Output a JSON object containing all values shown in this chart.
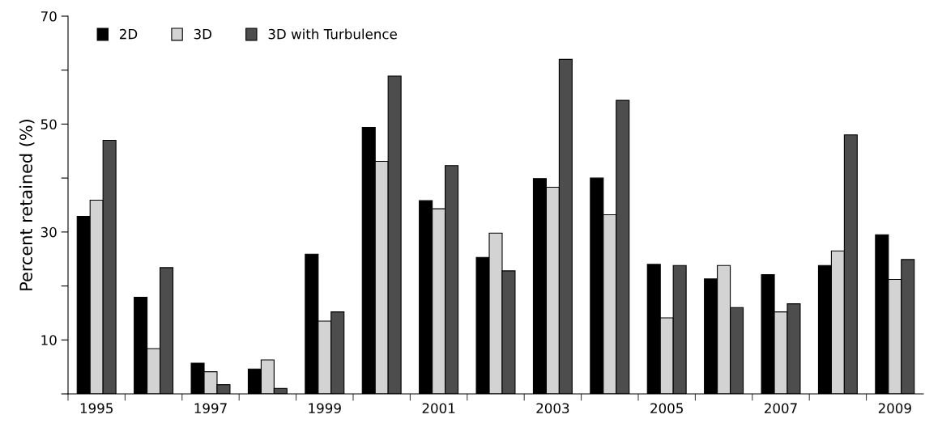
{
  "chart_data": {
    "type": "bar",
    "ylabel": "Percent retained (%)",
    "categories": [
      "1995",
      null,
      "1997",
      null,
      "1999",
      null,
      "2001",
      null,
      "2003",
      null,
      "2005",
      null,
      "2007",
      null,
      "2009"
    ],
    "series": [
      {
        "name": "2D",
        "color": "#000000",
        "values": [
          32.9,
          17.9,
          5.7,
          4.6,
          25.9,
          49.4,
          35.8,
          25.3,
          39.9,
          40.0,
          24.0,
          21.3,
          22.1,
          23.8,
          29.5
        ]
      },
      {
        "name": "3D",
        "color": "#d3d3d3",
        "values": [
          35.9,
          8.4,
          4.1,
          6.3,
          13.5,
          43.1,
          34.3,
          29.8,
          38.3,
          33.2,
          14.1,
          23.8,
          15.2,
          26.5,
          21.2
        ]
      },
      {
        "name": "3D with Turbulence",
        "color": "#4d4d4d",
        "values": [
          47.0,
          23.4,
          1.7,
          1.0,
          15.2,
          58.9,
          42.3,
          22.8,
          62.0,
          54.4,
          23.8,
          16.0,
          16.7,
          48.0,
          24.9
        ]
      }
    ],
    "ylim": [
      0,
      70
    ],
    "yticks": [
      {
        "value": 0,
        "label": null
      },
      10,
      {
        "value": 20,
        "label": null
      },
      30,
      {
        "value": 40,
        "label": null
      },
      50,
      {
        "value": 60,
        "label": null
      },
      70
    ],
    "grid": false,
    "legend": "top left"
  }
}
